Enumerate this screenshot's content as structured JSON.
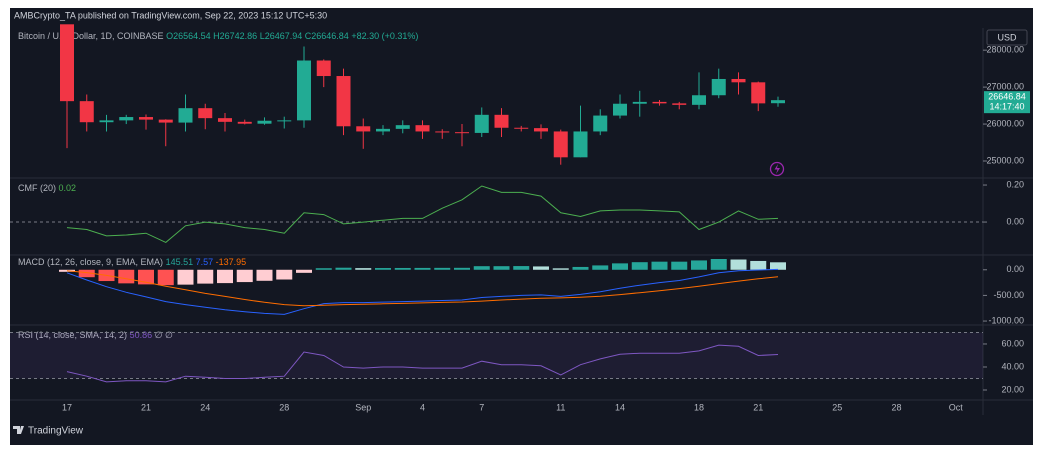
{
  "header": {
    "publisher": "AMBCrypto_TA published on TradingView.com, Sep 22, 2023 15:12 UTC+5:30"
  },
  "footer": {
    "brand": "TradingView"
  },
  "chart_data": [
    {
      "type": "candlestick",
      "title": "Bitcoin / U.S. Dollar, 1D, COINBASE",
      "ohlc_labels": [
        "O26564.54",
        "H26742.86",
        "L26467.94",
        "C26646.84",
        "+82.30 (+0.31%)"
      ],
      "currency": "USD",
      "last_price_label": "26646.84",
      "countdown": "14:17:40",
      "up_color": "#22ab94",
      "down_color": "#f23645",
      "categories": [
        "17",
        null,
        null,
        null,
        "21",
        null,
        null,
        "24",
        null,
        null,
        null,
        "28",
        null,
        null,
        null,
        "Sep",
        null,
        null,
        "4",
        null,
        null,
        "7",
        null,
        null,
        null,
        "11",
        null,
        null,
        "14",
        null,
        null,
        null,
        "18",
        null,
        null,
        "21",
        null,
        null,
        null,
        "25",
        null,
        null,
        "28",
        null,
        null,
        "Oct"
      ],
      "open": [
        28700,
        26620,
        26050,
        26100,
        26190,
        26120,
        26040,
        26430,
        26160,
        26060,
        26010,
        26090,
        26100,
        27720,
        27300,
        25940,
        25800,
        25870,
        25970,
        25800,
        25780,
        25760,
        26250,
        25900,
        25890,
        25800,
        25100,
        25800,
        26230,
        26550,
        26600,
        26560,
        26520,
        26780,
        27220,
        27130,
        26564.54,
        null,
        null,
        null,
        null,
        null,
        null,
        null,
        null,
        null
      ],
      "high": [
        28780,
        26800,
        26250,
        26250,
        26260,
        26130,
        26800,
        26550,
        26300,
        26120,
        26180,
        26200,
        28100,
        27750,
        27500,
        26150,
        25970,
        26100,
        26100,
        25860,
        26000,
        26450,
        26430,
        25950,
        25990,
        25850,
        26500,
        26400,
        26800,
        26900,
        26650,
        26600,
        27400,
        27500,
        27400,
        27150,
        26742.86,
        null,
        null,
        null,
        null,
        null,
        null,
        null,
        null,
        null
      ],
      "low": [
        25350,
        25800,
        25800,
        26000,
        25850,
        25400,
        25800,
        25860,
        25800,
        25990,
        25980,
        25880,
        25900,
        27000,
        25700,
        25330,
        25700,
        25750,
        25600,
        25600,
        25400,
        25650,
        25650,
        25800,
        25600,
        24900,
        25100,
        25700,
        26150,
        26200,
        26500,
        26400,
        26400,
        26700,
        26800,
        26350,
        26467.94,
        null,
        null,
        null,
        null,
        null,
        null,
        null,
        null,
        null
      ],
      "close": [
        26620,
        26050,
        26100,
        26190,
        26120,
        26040,
        26430,
        26160,
        26060,
        26010,
        26090,
        26100,
        27720,
        27300,
        25940,
        25800,
        25870,
        25970,
        25800,
        25780,
        25760,
        26250,
        25900,
        25890,
        25800,
        25100,
        25800,
        26230,
        26550,
        26600,
        26560,
        26520,
        26780,
        27220,
        27130,
        26560,
        26646.84,
        null,
        null,
        null,
        null,
        null,
        null,
        null,
        null,
        null
      ],
      "ylim": [
        24540,
        28600
      ],
      "yticks": [
        {
          "value": 25000,
          "label": "25000.00"
        },
        {
          "value": 26000,
          "label": "26000.00"
        },
        {
          "value": 27000,
          "label": "27000.00"
        },
        {
          "value": 28000,
          "label": "28000.00"
        }
      ]
    },
    {
      "type": "line",
      "title": "CMF (20)",
      "legend_values": [
        "0.02"
      ],
      "series": [
        {
          "name": "CMF",
          "color": "#4caf50",
          "values": [
            -0.03,
            -0.04,
            -0.075,
            -0.07,
            -0.06,
            -0.11,
            -0.02,
            0,
            -0.01,
            -0.03,
            -0.04,
            -0.06,
            0.05,
            0.04,
            -0.01,
            0,
            0.01,
            0.02,
            0.02,
            0.075,
            0.12,
            0.195,
            0.16,
            0.16,
            0.14,
            0.05,
            0.03,
            0.06,
            0.065,
            0.065,
            0.06,
            0.055,
            -0.04,
            0,
            0.06,
            0.015,
            0.02,
            null,
            null,
            null,
            null,
            null,
            null,
            null,
            null,
            null
          ]
        }
      ],
      "hlines": [
        0
      ],
      "ylim": [
        -0.178,
        0.238
      ],
      "yticks": [
        {
          "value": 0,
          "label": "0.00"
        },
        {
          "value": 0.2,
          "label": "0.20"
        }
      ]
    },
    {
      "type": "macd",
      "title": "MACD (12, 26, close, 9, EMA, EMA)",
      "legend_values": [
        "145.51",
        "7.57",
        "-137.95"
      ],
      "histogram": {
        "values": [
          -40,
          -145,
          -220,
          -265,
          -285,
          -300,
          -290,
          -270,
          -260,
          -240,
          -215,
          -190,
          -60,
          30,
          40,
          32,
          34,
          35,
          36,
          37,
          38,
          70,
          70,
          72,
          65,
          28,
          55,
          85,
          125,
          148,
          158,
          158,
          182,
          210,
          200,
          172,
          145.51,
          null,
          null,
          null,
          null,
          null,
          null,
          null,
          null,
          null
        ],
        "colors": {
          "growing_above": "#26a69a",
          "falling_above": "#b2dfdb",
          "growing_below": "#ffcdd2",
          "falling_below": "#ff5252"
        }
      },
      "series": [
        {
          "name": "MACD",
          "color": "#2962ff",
          "values": [
            -60,
            -200,
            -330,
            -440,
            -530,
            -620,
            -680,
            -730,
            -780,
            -820,
            -850,
            -870,
            -760,
            -660,
            -640,
            -640,
            -630,
            -620,
            -610,
            -600,
            -590,
            -540,
            -520,
            -500,
            -490,
            -520,
            -480,
            -430,
            -360,
            -300,
            -250,
            -210,
            -140,
            -60,
            -20,
            -5,
            7.57,
            null,
            null,
            null,
            null,
            null,
            null,
            null,
            null,
            null
          ]
        },
        {
          "name": "Signal",
          "color": "#ff6d00",
          "values": [
            -20,
            -55,
            -110,
            -175,
            -245,
            -320,
            -390,
            -460,
            -520,
            -580,
            -635,
            -680,
            -700,
            -690,
            -680,
            -672,
            -664,
            -655,
            -646,
            -637,
            -628,
            -610,
            -590,
            -572,
            -555,
            -548,
            -535,
            -515,
            -485,
            -448,
            -408,
            -368,
            -322,
            -270,
            -220,
            -177,
            -137.95,
            null,
            null,
            null,
            null,
            null,
            null,
            null,
            null,
            null
          ]
        }
      ],
      "ylim": [
        -1077,
        288
      ],
      "yticks": [
        {
          "value": -1000,
          "label": "-1000.00"
        },
        {
          "value": -500,
          "label": "-500.00"
        },
        {
          "value": 0,
          "label": "0.00"
        }
      ]
    },
    {
      "type": "line",
      "title": "RSI (14, close, SMA, 14, 2)",
      "legend_values": [
        "50.86",
        "∅",
        "∅"
      ],
      "series": [
        {
          "name": "RSI",
          "color": "#7e57c2",
          "values": [
            36,
            32,
            27,
            28,
            28,
            27,
            32,
            31,
            30,
            30,
            31,
            32,
            53,
            50,
            40,
            39,
            40,
            40,
            39,
            39,
            39,
            45,
            42,
            42,
            41,
            33,
            42,
            47,
            51,
            52,
            52,
            52,
            54,
            59,
            58,
            50,
            50.86,
            null,
            null,
            null,
            null,
            null,
            null,
            null,
            null,
            null
          ]
        }
      ],
      "bands": [
        30,
        70
      ],
      "band_color": "#7e57c2",
      "ylim": [
        11.3,
        76.5
      ],
      "yticks": [
        {
          "value": 20,
          "label": "20.00"
        },
        {
          "value": 40,
          "label": "40.00"
        },
        {
          "value": 60,
          "label": "60.00"
        }
      ]
    }
  ]
}
